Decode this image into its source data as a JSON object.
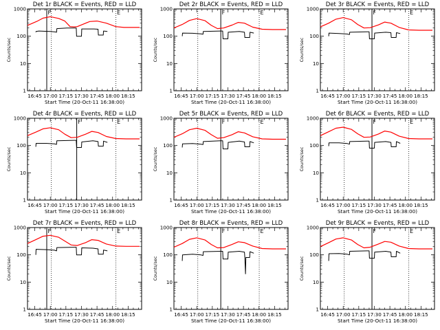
{
  "chart_data": [
    {
      "type": "line",
      "title": "Det 1r BLACK = Events, RED = LLD",
      "xlabel": "Start Time (20-Oct-11 16:38:00)",
      "ylabel": "Counts/sec",
      "yscale": "log",
      "ylim": [
        1,
        1000
      ],
      "x_tick_labels": [
        "16:45",
        "17:00",
        "17:15",
        "17:30",
        "17:45",
        "18:00",
        "18:15"
      ],
      "y_tick_labels": [
        "1",
        "10",
        "100",
        "1000"
      ],
      "markers": [
        {
          "label": "F",
          "x_min": 18.55
        },
        {
          "label": "E",
          "x_min": 85.25
        }
      ],
      "series": [
        {
          "name": "LLD",
          "color": "#ff0000",
          "x_min": [
            0,
            9,
            15,
            22,
            30,
            36,
            41,
            45,
            48,
            52,
            60,
            67,
            76,
            85,
            93,
            99,
            104,
            108
          ],
          "y": [
            250,
            350,
            460,
            520,
            450,
            360,
            225,
            220,
            225,
            260,
            345,
            360,
            300,
            225,
            210,
            210,
            210,
            210
          ]
        },
        {
          "name": "Events",
          "color": "#000000",
          "x_min": [
            8,
            8.3,
            11,
            17,
            22,
            27,
            28,
            28.3,
            38,
            47,
            47.3,
            52,
            52.3,
            64,
            68,
            68.3,
            73,
            73.3,
            77
          ],
          "y": [
            140,
            150,
            155,
            152,
            150,
            143,
            140,
            190,
            200,
            200,
            100,
            100,
            185,
            185,
            180,
            110,
            110,
            155,
            150
          ]
        }
      ]
    },
    {
      "type": "line",
      "title": "Det 2r BLACK = Events, RED = LLD",
      "xlabel": "Start Time (20-Oct-11 16:38:00)",
      "ylabel": "Counts/sec",
      "yscale": "log",
      "ylim": [
        1,
        1000
      ],
      "x_tick_labels": [
        "16:45",
        "17:00",
        "17:15",
        "17:30",
        "17:45",
        "18:00",
        "18:15"
      ],
      "y_tick_labels": [
        "1",
        "10",
        "100",
        "1000"
      ],
      "markers": [
        {
          "label": "F",
          "x_min": 45.15
        },
        {
          "label": "E",
          "x_min": 82.2
        }
      ],
      "series": [
        {
          "name": "LLD",
          "color": "#ff0000",
          "x_min": [
            0,
            8,
            15,
            22,
            30,
            36,
            42,
            48,
            56,
            62,
            68,
            76,
            85,
            95,
            108
          ],
          "y": [
            200,
            270,
            380,
            440,
            370,
            250,
            190,
            200,
            255,
            320,
            300,
            215,
            180,
            175,
            175
          ]
        },
        {
          "name": "Events",
          "color": "#000000",
          "x_min": [
            8,
            8.3,
            18,
            26,
            28,
            28.3,
            45,
            47,
            47.3,
            52,
            52.3,
            63,
            68,
            68.3,
            73,
            73.3,
            77
          ],
          "y": [
            100,
            130,
            128,
            122,
            118,
            150,
            155,
            155,
            80,
            80,
            140,
            150,
            140,
            90,
            90,
            140,
            130
          ]
        }
      ]
    },
    {
      "type": "line",
      "title": "Det 3r BLACK = Events, RED = LLD",
      "xlabel": "Start Time (20-Oct-11 16:38:00)",
      "ylabel": "Counts/sec",
      "yscale": "log",
      "ylim": [
        1,
        1000
      ],
      "x_tick_labels": [
        "16:45",
        "17:00",
        "17:15",
        "17:30",
        "17:45",
        "18:00",
        "18:15"
      ],
      "y_tick_labels": [
        "1",
        "10",
        "100",
        "1000"
      ],
      "markers": [
        {
          "label": "F",
          "x_min": 49.72
        },
        {
          "label": "E",
          "x_min": 85.25
        }
      ],
      "series": [
        {
          "name": "LLD",
          "color": "#ff0000",
          "x_min": [
            0,
            8,
            15,
            22,
            30,
            36,
            42,
            48,
            56,
            62,
            68,
            76,
            85,
            95,
            108
          ],
          "y": [
            220,
            300,
            420,
            480,
            400,
            270,
            200,
            205,
            260,
            330,
            300,
            210,
            170,
            165,
            165
          ]
        },
        {
          "name": "Events",
          "color": "#000000",
          "x_min": [
            8,
            8.3,
            18,
            26,
            28,
            28.3,
            45,
            47,
            47.3,
            52,
            52.3,
            63,
            68,
            68.3,
            73,
            73.3,
            77
          ],
          "y": [
            100,
            130,
            125,
            120,
            115,
            140,
            145,
            145,
            80,
            80,
            130,
            140,
            135,
            90,
            90,
            135,
            125
          ]
        }
      ]
    },
    {
      "type": "line",
      "title": "Det 4r BLACK = Events, RED = LLD",
      "xlabel": "Start Time (20-Oct-11 16:38:00)",
      "ylabel": "Counts/sec",
      "yscale": "log",
      "ylim": [
        1,
        1000
      ],
      "x_tick_labels": [
        "16:45",
        "17:00",
        "17:15",
        "17:30",
        "17:45",
        "18:00",
        "18:15"
      ],
      "y_tick_labels": [
        "1",
        "10",
        "100",
        "1000"
      ],
      "markers": [
        {
          "label": "F",
          "x_min": 47.44
        },
        {
          "label": "E",
          "x_min": 85.25
        }
      ],
      "series": [
        {
          "name": "LLD",
          "color": "#ff0000",
          "x_min": [
            0,
            8,
            15,
            22,
            30,
            36,
            42,
            48,
            56,
            62,
            68,
            76,
            85,
            95,
            108
          ],
          "y": [
            230,
            310,
            410,
            450,
            380,
            260,
            195,
            200,
            260,
            330,
            300,
            215,
            180,
            175,
            175
          ]
        },
        {
          "name": "Events",
          "color": "#000000",
          "x_min": [
            8,
            8.3,
            18,
            26,
            28,
            28.3,
            45,
            47,
            47.3,
            52,
            52.3,
            63,
            68,
            68.3,
            73,
            73.3,
            77
          ],
          "y": [
            90,
            120,
            120,
            115,
            110,
            150,
            155,
            155,
            85,
            85,
            135,
            150,
            140,
            95,
            95,
            145,
            130
          ]
        }
      ]
    },
    {
      "type": "line",
      "title": "Det 5r BLACK = Events, RED = LLD",
      "xlabel": "Start Time (20-Oct-11 16:38:00)",
      "ylabel": "Counts/sec",
      "yscale": "log",
      "ylim": [
        1,
        1000
      ],
      "x_tick_labels": [
        "16:45",
        "17:00",
        "17:15",
        "17:30",
        "17:45",
        "18:00",
        "18:15"
      ],
      "y_tick_labels": [
        "1",
        "10",
        "100",
        "1000"
      ],
      "markers": [
        {
          "label": "F",
          "x_min": 45.15
        },
        {
          "label": "E",
          "x_min": 82.2
        }
      ],
      "series": [
        {
          "name": "LLD",
          "color": "#ff0000",
          "x_min": [
            0,
            8,
            15,
            22,
            30,
            36,
            42,
            48,
            56,
            62,
            68,
            76,
            85,
            95,
            108
          ],
          "y": [
            200,
            270,
            380,
            430,
            360,
            250,
            185,
            195,
            250,
            320,
            290,
            210,
            175,
            170,
            170
          ]
        },
        {
          "name": "Events",
          "color": "#000000",
          "x_min": [
            8,
            8.3,
            18,
            26,
            28,
            28.3,
            45,
            47,
            47.3,
            52,
            52.3,
            63,
            68,
            68.3,
            73,
            73.3,
            77
          ],
          "y": [
            85,
            115,
            118,
            112,
            108,
            140,
            150,
            150,
            75,
            75,
            130,
            145,
            135,
            90,
            90,
            140,
            125
          ]
        }
      ]
    },
    {
      "type": "line",
      "title": "Det 6r BLACK = Events, RED = LLD",
      "xlabel": "Start Time (20-Oct-11 16:38:00)",
      "ylabel": "Counts/sec",
      "yscale": "log",
      "ylim": [
        1,
        1000
      ],
      "x_tick_labels": [
        "16:45",
        "17:00",
        "17:15",
        "17:30",
        "17:45",
        "18:00",
        "18:15"
      ],
      "y_tick_labels": [
        "1",
        "10",
        "100",
        "1000"
      ],
      "markers": [
        {
          "label": "F",
          "x_min": 49.72
        },
        {
          "label": "E",
          "x_min": 85.25
        }
      ],
      "series": [
        {
          "name": "LLD",
          "color": "#ff0000",
          "x_min": [
            0,
            8,
            15,
            22,
            30,
            36,
            42,
            48,
            56,
            62,
            68,
            76,
            85,
            95,
            108
          ],
          "y": [
            230,
            320,
            430,
            470,
            390,
            270,
            200,
            205,
            265,
            340,
            310,
            220,
            180,
            175,
            175
          ]
        },
        {
          "name": "Events",
          "color": "#000000",
          "x_min": [
            8,
            8.3,
            18,
            26,
            28,
            28.3,
            45,
            47,
            47.3,
            52,
            52.3,
            63,
            68,
            68.3,
            73,
            73.3,
            77
          ],
          "y": [
            95,
            125,
            125,
            118,
            112,
            140,
            145,
            145,
            80,
            80,
            130,
            140,
            130,
            90,
            90,
            140,
            120
          ]
        }
      ]
    },
    {
      "type": "line",
      "title": "Det 7r BLACK = Events, RED = LLD",
      "xlabel": "Start Time (20-Oct-11 16:38:00)",
      "ylabel": "Counts/sec",
      "yscale": "log",
      "ylim": [
        1,
        1000
      ],
      "x_tick_labels": [
        "16:45",
        "17:00",
        "17:15",
        "17:30",
        "17:45",
        "18:00",
        "18:15"
      ],
      "y_tick_labels": [
        "1",
        "10",
        "100",
        "1000"
      ],
      "markers": [
        {
          "label": "F",
          "x_min": 18.55
        },
        {
          "label": "E",
          "x_min": 85.25
        }
      ],
      "series": [
        {
          "name": "LLD",
          "color": "#ff0000",
          "x_min": [
            0,
            8,
            15,
            22,
            30,
            36,
            42,
            48,
            56,
            62,
            68,
            76,
            85,
            95,
            108
          ],
          "y": [
            260,
            360,
            480,
            520,
            440,
            320,
            230,
            220,
            280,
            360,
            340,
            250,
            210,
            205,
            205
          ]
        },
        {
          "name": "Events",
          "color": "#000000",
          "x_min": [
            8,
            8.3,
            18,
            26,
            28,
            28.3,
            45,
            47,
            47.3,
            52,
            52.3,
            63,
            68,
            68.3,
            73,
            73.3,
            77
          ],
          "y": [
            100,
            160,
            155,
            148,
            140,
            185,
            190,
            190,
            100,
            100,
            180,
            175,
            165,
            105,
            105,
            150,
            140
          ]
        }
      ]
    },
    {
      "type": "line",
      "title": "Det 8r BLACK = Events, RED = LLD",
      "xlabel": "Start Time (20-Oct-11 16:38:00)",
      "ylabel": "Counts/sec",
      "yscale": "log",
      "ylim": [
        1,
        1000
      ],
      "x_tick_labels": [
        "16:45",
        "17:00",
        "17:15",
        "17:30",
        "17:45",
        "18:00",
        "18:15"
      ],
      "y_tick_labels": [
        "1",
        "10",
        "100",
        "1000"
      ],
      "markers": [
        {
          "label": "F",
          "x_min": 45.15
        },
        {
          "label": "E",
          "x_min": 82.2
        }
      ],
      "series": [
        {
          "name": "LLD",
          "color": "#ff0000",
          "x_min": [
            0,
            8,
            15,
            22,
            30,
            36,
            42,
            48,
            56,
            62,
            68,
            76,
            85,
            95,
            108
          ],
          "y": [
            190,
            260,
            370,
            420,
            350,
            240,
            180,
            185,
            240,
            300,
            280,
            210,
            170,
            165,
            165
          ]
        },
        {
          "name": "Events",
          "color": "#000000",
          "x_min": [
            8,
            8.3,
            18,
            26,
            28,
            28.3,
            45,
            47,
            47.3,
            52,
            52.3,
            63,
            68,
            68.3,
            69,
            69.3,
            73,
            73.3,
            77
          ],
          "y": [
            60,
            100,
            105,
            100,
            95,
            130,
            135,
            135,
            70,
            70,
            125,
            135,
            125,
            80,
            20,
            80,
            80,
            130,
            115
          ]
        }
      ]
    },
    {
      "type": "line",
      "title": "Det 9r BLACK = Events, RED = LLD",
      "xlabel": "Start Time (20-Oct-11 16:38:00)",
      "ylabel": "Counts/sec",
      "yscale": "log",
      "ylim": [
        1,
        1000
      ],
      "x_tick_labels": [
        "16:45",
        "17:00",
        "17:15",
        "17:30",
        "17:45",
        "18:00",
        "18:15"
      ],
      "y_tick_labels": [
        "1",
        "10",
        "100",
        "1000"
      ],
      "markers": [
        {
          "label": "F",
          "x_min": 49.72
        },
        {
          "label": "E",
          "x_min": 85.25
        }
      ],
      "series": [
        {
          "name": "LLD",
          "color": "#ff0000",
          "x_min": [
            0,
            8,
            15,
            22,
            30,
            36,
            42,
            48,
            56,
            62,
            68,
            76,
            85,
            95,
            108
          ],
          "y": [
            200,
            280,
            380,
            420,
            350,
            240,
            180,
            190,
            250,
            310,
            290,
            210,
            170,
            165,
            165
          ]
        },
        {
          "name": "Events",
          "color": "#000000",
          "x_min": [
            8,
            8.3,
            18,
            26,
            28,
            28.3,
            45,
            47,
            47.3,
            52,
            52.3,
            63,
            68,
            68.3,
            73,
            73.3,
            77
          ],
          "y": [
            60,
            110,
            112,
            105,
            100,
            135,
            140,
            140,
            75,
            75,
            125,
            135,
            125,
            85,
            85,
            135,
            115
          ]
        }
      ]
    }
  ]
}
